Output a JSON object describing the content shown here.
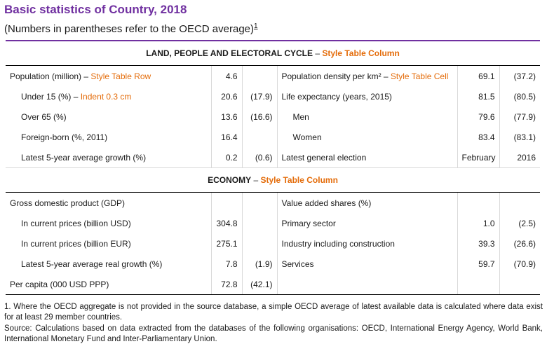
{
  "title": "Basic statistics of Country, 2018",
  "subtitle": "(Numbers in parentheses refer to the OECD average)",
  "subtitle_note": "1",
  "section1": {
    "title": "LAND, PEOPLE AND ELECTORAL CYCLE",
    "sep": " – ",
    "style": "Style Table Column"
  },
  "section2": {
    "title": "ECONOMY",
    "sep": " – ",
    "style": "Style Table Column"
  },
  "rows1": [
    {
      "label": "Population (million)",
      "sep": " – ",
      "style": "Style Table Row",
      "v": "4.6",
      "avg": "",
      "label2": "Population density per km²",
      "sep2": " – ",
      "style2": "Style Table Cell",
      "v2": "69.1",
      "avg2": "(37.2)"
    },
    {
      "label": "Under 15 (%)",
      "sep": " – ",
      "style": "Indent 0.3 cm",
      "v": "20.6",
      "avg": "(17.9)",
      "label2": "Life expectancy (years, 2015)",
      "v2": "81.5",
      "avg2": "(80.5)"
    },
    {
      "label": "Over 65 (%)",
      "v": "13.6",
      "avg": "(16.6)",
      "label2": "Men",
      "v2": "79.6",
      "avg2": "(77.9)"
    },
    {
      "label": "Foreign-born (%, 2011)",
      "v": "16.4",
      "avg": "",
      "label2": "Women",
      "v2": "83.4",
      "avg2": "(83.1)"
    },
    {
      "label": "Latest 5-year average growth (%)",
      "v": "0.2",
      "avg": "(0.6)",
      "label2": "Latest general election",
      "v2": "February",
      "avg2": "2016"
    }
  ],
  "rows2": [
    {
      "label": "Gross domestic product (GDP)",
      "v": "",
      "avg": "",
      "label2": "Value added shares (%)",
      "v2": "",
      "avg2": ""
    },
    {
      "label": "In current prices (billion USD)",
      "v": "304.8",
      "avg": "",
      "label2": "Primary sector",
      "v2": "1.0",
      "avg2": "(2.5)"
    },
    {
      "label": "In current prices (billion EUR)",
      "v": "275.1",
      "avg": "",
      "label2": "Industry including construction",
      "v2": "39.3",
      "avg2": "(26.6)"
    },
    {
      "label": "Latest 5-year average real growth (%)",
      "v": "7.8",
      "avg": "(1.9)",
      "label2": "Services",
      "v2": "59.7",
      "avg2": "(70.9)"
    },
    {
      "label": "Per capita (000 USD PPP)",
      "v": "72.8",
      "avg": "(42.1)",
      "label2": "",
      "v2": "",
      "avg2": ""
    }
  ],
  "footnote": "1. Where the OECD aggregate is not provided in the source database, a simple OECD average of latest available data is calculated where data exist for at least 29 member countries.",
  "source": "Source: Calculations based on data extracted from the databases of the following organisations: OECD, International Energy Agency, World Bank, International Monetary Fund and Inter-Parliamentary Union.",
  "colors": {
    "title": "#7030a0",
    "accent": "#e46c0a",
    "border": "#7030a0"
  }
}
